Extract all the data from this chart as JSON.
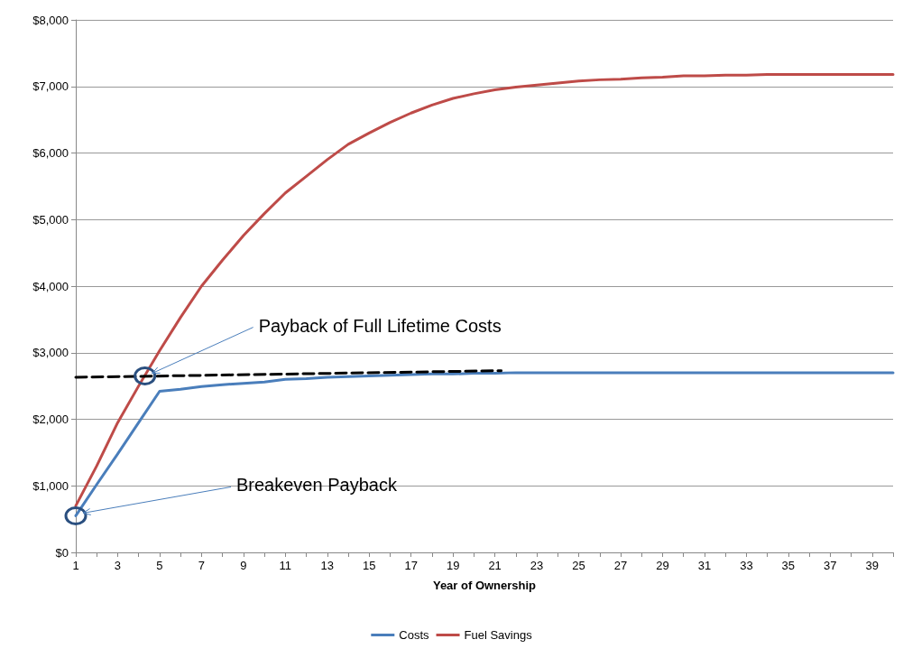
{
  "chart_data": {
    "type": "line",
    "xlabel": "Year of Ownership",
    "x": [
      1,
      2,
      3,
      4,
      5,
      6,
      7,
      8,
      9,
      10,
      11,
      12,
      13,
      14,
      15,
      16,
      17,
      18,
      19,
      20,
      21,
      22,
      23,
      24,
      25,
      26,
      27,
      28,
      29,
      30,
      31,
      32,
      33,
      34,
      35,
      36,
      37,
      38,
      39,
      40
    ],
    "series": [
      {
        "name": "Costs",
        "color": "#4a7ebb",
        "values": [
          550,
          1020,
          1480,
          1950,
          2420,
          2450,
          2490,
          2520,
          2540,
          2560,
          2600,
          2610,
          2630,
          2640,
          2650,
          2660,
          2670,
          2680,
          2680,
          2690,
          2690,
          2700,
          2700,
          2700,
          2700,
          2700,
          2700,
          2700,
          2700,
          2700,
          2700,
          2700,
          2700,
          2700,
          2700,
          2700,
          2700,
          2700,
          2700,
          2700
        ]
      },
      {
        "name": "Fuel Savings",
        "color": "#be4b48",
        "values": [
          700,
          1300,
          1950,
          2500,
          3030,
          3530,
          4000,
          4390,
          4760,
          5090,
          5400,
          5650,
          5900,
          6130,
          6300,
          6460,
          6600,
          6720,
          6820,
          6890,
          6950,
          6990,
          7020,
          7050,
          7080,
          7100,
          7110,
          7130,
          7140,
          7160,
          7160,
          7170,
          7170,
          7180,
          7180,
          7180,
          7180,
          7180,
          7180,
          7180
        ]
      },
      {
        "type": "line",
        "line_style": "dashed",
        "color": "#000000",
        "x": [
          1,
          21.3
        ],
        "values": [
          2630,
          2730
        ]
      }
    ],
    "xlim": [
      1,
      40
    ],
    "xticks": [
      1,
      {
        "value": 2,
        "label": null
      },
      3,
      {
        "value": 4,
        "label": null
      },
      5,
      {
        "value": 6,
        "label": null
      },
      7,
      {
        "value": 8,
        "label": null
      },
      9,
      {
        "value": 10,
        "label": null
      },
      11,
      {
        "value": 12,
        "label": null
      },
      13,
      {
        "value": 14,
        "label": null
      },
      15,
      {
        "value": 16,
        "label": null
      },
      17,
      {
        "value": 18,
        "label": null
      },
      19,
      {
        "value": 20,
        "label": null
      },
      21,
      {
        "value": 22,
        "label": null
      },
      23,
      {
        "value": 24,
        "label": null
      },
      25,
      {
        "value": 26,
        "label": null
      },
      27,
      {
        "value": 28,
        "label": null
      },
      29,
      {
        "value": 30,
        "label": null
      },
      31,
      {
        "value": 32,
        "label": null
      },
      33,
      {
        "value": 34,
        "label": null
      },
      35,
      {
        "value": 36,
        "label": null
      },
      37,
      {
        "value": 38,
        "label": null
      },
      39,
      {
        "value": 40,
        "label": null
      }
    ],
    "ylim": [
      0,
      8000
    ],
    "yticks": [
      {
        "value": 0,
        "label": "$0"
      },
      {
        "value": 1000,
        "label": "$1,000"
      },
      {
        "value": 2000,
        "label": "$2,000"
      },
      {
        "value": 3000,
        "label": "$3,000"
      },
      {
        "value": 4000,
        "label": "$4,000"
      },
      {
        "value": 5000,
        "label": "$5,000"
      },
      {
        "value": 6000,
        "label": "$6,000"
      },
      {
        "value": 7000,
        "label": "$7,000"
      },
      {
        "value": 8000,
        "label": "$8,000"
      }
    ],
    "grid": "y",
    "legend": "bottom",
    "marker": "none",
    "line_style": "solid",
    "annotations": [
      {
        "text": "Payback of Full Lifetime Costs",
        "x": 4.3,
        "y": 2650
      },
      {
        "text": "Breakeven Payback",
        "x": 1,
        "y": 550
      }
    ]
  }
}
